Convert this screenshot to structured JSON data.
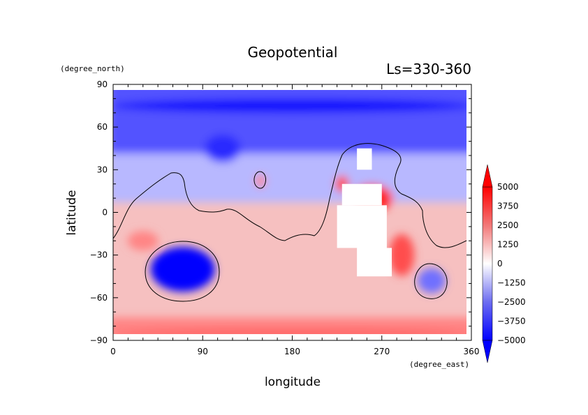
{
  "chart_data": {
    "type": "heatmap",
    "title": "Geopotential",
    "subtitle": "Ls=330-360",
    "xlabel": "longitude",
    "ylabel": "latitude",
    "x_units": "(degree_east)",
    "y_units": "(degree_north)",
    "xlim": [
      0,
      360
    ],
    "ylim": [
      -90,
      90
    ],
    "x_ticks": [
      0,
      90,
      180,
      270,
      360
    ],
    "y_ticks": [
      90,
      60,
      30,
      0,
      -30,
      -60,
      -90
    ],
    "colorbar": {
      "min": -5000,
      "max": 5000,
      "labels": [
        "5000",
        "3750",
        "2500",
        "1250",
        "0",
        "-1250",
        "-2500",
        "-3750",
        "-5000"
      ],
      "low_color": "#0000ff",
      "mid_color": "#ffffff",
      "high_color": "#ff0000"
    },
    "missing_regions": [
      {
        "lon": [
          230,
          270
        ],
        "lat": [
          5,
          20
        ]
      },
      {
        "lon": [
          225,
          275
        ],
        "lat": [
          -25,
          5
        ]
      },
      {
        "lon": [
          245,
          280
        ],
        "lat": [
          -45,
          -25
        ]
      },
      {
        "lon": [
          245,
          260
        ],
        "lat": [
          30,
          45
        ]
      }
    ],
    "features": [
      {
        "lon": 70,
        "lat": -40,
        "value": -5000
      },
      {
        "lon": 320,
        "lat": -48,
        "value": -2800
      },
      {
        "lon": 110,
        "lat": 45,
        "value": -4200
      },
      {
        "lon": 148,
        "lat": 22,
        "value": 2500
      },
      {
        "lon": 230,
        "lat": 20,
        "value": 3500
      },
      {
        "lon": 290,
        "lat": -30,
        "value": 3500
      },
      {
        "lon": 260,
        "lat": 10,
        "value": 4200
      },
      {
        "lon": 30,
        "lat": -20,
        "value": 2400
      },
      {
        "lon": 180,
        "lat": -85,
        "value": 3000
      },
      {
        "lon": 180,
        "lat": 75,
        "value": -4800
      }
    ]
  }
}
